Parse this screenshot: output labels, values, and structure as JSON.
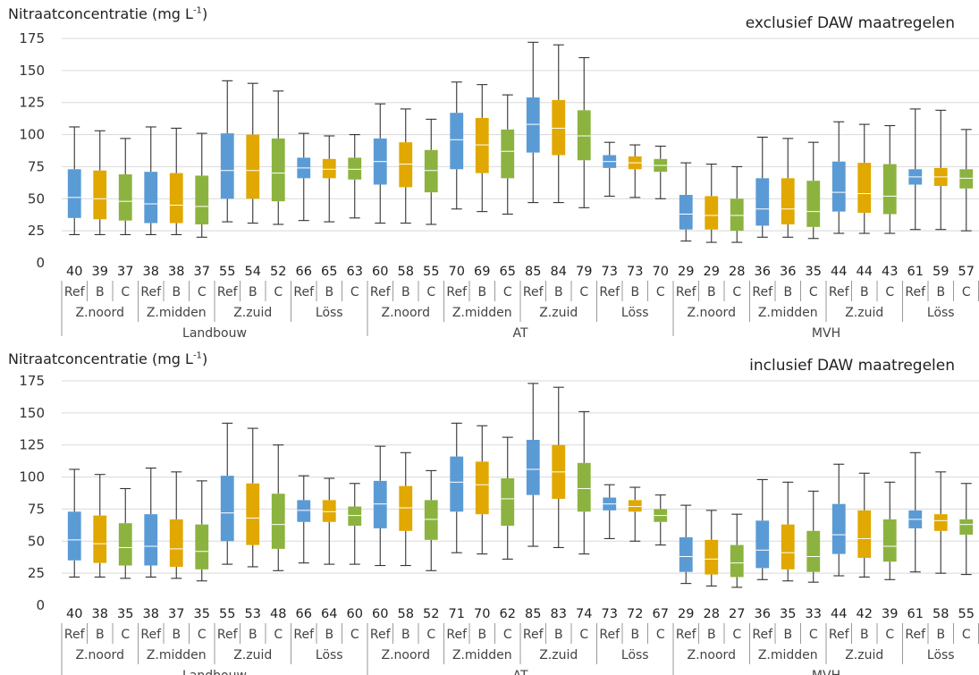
{
  "colors": {
    "Ref": "#5B9BD5",
    "B": "#E0A800",
    "C": "#8CB33F",
    "whisker": "#333333",
    "median": "#ffffff"
  },
  "chart_data": [
    {
      "type": "boxplot",
      "title": "exclusief DAW maatregelen",
      "ylabel": "Nitraatconcentratie (mg L",
      "ylabel_sup": "-1",
      "ylabel_close": ")",
      "ylim": [
        0,
        175
      ],
      "yticks": [
        0,
        25,
        50,
        75,
        100,
        125,
        150,
        175
      ],
      "grid": true,
      "scenarios": [
        "Ref",
        "B",
        "C"
      ],
      "groups": [
        {
          "name": "Landbouw",
          "regions": [
            "Z.noord",
            "Z.midden",
            "Z.zuid",
            "Löss"
          ]
        },
        {
          "name": "AT",
          "regions": [
            "Z.noord",
            "Z.midden",
            "Z.zuid",
            "Löss"
          ]
        },
        {
          "name": "MVH",
          "regions": [
            "Z.noord",
            "Z.midden",
            "Z.zuid",
            "Löss"
          ]
        }
      ],
      "boxes": [
        [
          22,
          35,
          51,
          73,
          106
        ],
        [
          22,
          34,
          50,
          72,
          103
        ],
        [
          22,
          33,
          48,
          69,
          97
        ],
        [
          22,
          31,
          46,
          71,
          106
        ],
        [
          22,
          31,
          45,
          70,
          105
        ],
        [
          20,
          30,
          44,
          68,
          101
        ],
        [
          32,
          50,
          72,
          101,
          142
        ],
        [
          31,
          50,
          72,
          100,
          140
        ],
        [
          30,
          48,
          70,
          97,
          134
        ],
        [
          33,
          66,
          74,
          82,
          101
        ],
        [
          32,
          66,
          73,
          81,
          99
        ],
        [
          35,
          65,
          73,
          82,
          100
        ],
        [
          31,
          61,
          79,
          97,
          124
        ],
        [
          31,
          59,
          77,
          94,
          120
        ],
        [
          30,
          55,
          72,
          88,
          112
        ],
        [
          42,
          73,
          96,
          117,
          141
        ],
        [
          40,
          70,
          92,
          113,
          139
        ],
        [
          38,
          66,
          87,
          104,
          131
        ],
        [
          47,
          86,
          108,
          129,
          172
        ],
        [
          47,
          84,
          105,
          127,
          170
        ],
        [
          43,
          80,
          99,
          119,
          160
        ],
        [
          52,
          74,
          79,
          84,
          94
        ],
        [
          51,
          73,
          78,
          83,
          92
        ],
        [
          50,
          71,
          76,
          81,
          91
        ],
        [
          17,
          26,
          38,
          53,
          78
        ],
        [
          16,
          26,
          37,
          52,
          77
        ],
        [
          16,
          25,
          37,
          50,
          75
        ],
        [
          20,
          29,
          42,
          66,
          98
        ],
        [
          20,
          30,
          42,
          66,
          97
        ],
        [
          19,
          28,
          40,
          64,
          94
        ],
        [
          23,
          40,
          55,
          79,
          110
        ],
        [
          23,
          39,
          54,
          78,
          108
        ],
        [
          23,
          38,
          52,
          77,
          107
        ],
        [
          26,
          61,
          67,
          73,
          120
        ],
        [
          26,
          60,
          67,
          74,
          119
        ],
        [
          25,
          58,
          66,
          73,
          104
        ]
      ],
      "labels": [
        "40",
        "39",
        "37",
        "38",
        "38",
        "37",
        "55",
        "54",
        "52",
        "66",
        "65",
        "63",
        "60",
        "58",
        "55",
        "70",
        "69",
        "65",
        "85",
        "84",
        "79",
        "73",
        "73",
        "70",
        "29",
        "29",
        "28",
        "36",
        "36",
        "35",
        "44",
        "44",
        "43",
        "61",
        "59",
        "57"
      ]
    },
    {
      "type": "boxplot",
      "title": "inclusief DAW maatregelen",
      "ylabel": "Nitraatconcentratie (mg L",
      "ylabel_sup": "-1",
      "ylabel_close": ")",
      "ylim": [
        0,
        175
      ],
      "yticks": [
        0,
        25,
        50,
        75,
        100,
        125,
        150,
        175
      ],
      "grid": true,
      "scenarios": [
        "Ref",
        "B",
        "C"
      ],
      "groups": [
        {
          "name": "Landbouw",
          "regions": [
            "Z.noord",
            "Z.midden",
            "Z.zuid",
            "Löss"
          ]
        },
        {
          "name": "AT",
          "regions": [
            "Z.noord",
            "Z.midden",
            "Z.zuid",
            "Löss"
          ]
        },
        {
          "name": "MVH",
          "regions": [
            "Z.noord",
            "Z.midden",
            "Z.zuid",
            "Löss"
          ]
        }
      ],
      "boxes": [
        [
          22,
          35,
          51,
          73,
          106
        ],
        [
          22,
          33,
          48,
          70,
          102
        ],
        [
          21,
          31,
          45,
          64,
          91
        ],
        [
          22,
          31,
          46,
          71,
          107
        ],
        [
          21,
          30,
          44,
          67,
          104
        ],
        [
          19,
          28,
          42,
          63,
          97
        ],
        [
          32,
          50,
          72,
          101,
          142
        ],
        [
          30,
          47,
          68,
          95,
          138
        ],
        [
          27,
          44,
          63,
          87,
          125
        ],
        [
          33,
          65,
          74,
          82,
          101
        ],
        [
          32,
          65,
          73,
          82,
          99
        ],
        [
          32,
          62,
          70,
          77,
          95
        ],
        [
          31,
          60,
          79,
          97,
          124
        ],
        [
          31,
          58,
          76,
          93,
          119
        ],
        [
          27,
          51,
          67,
          82,
          105
        ],
        [
          41,
          73,
          96,
          116,
          142
        ],
        [
          40,
          71,
          94,
          112,
          140
        ],
        [
          36,
          62,
          83,
          99,
          131
        ],
        [
          46,
          86,
          106,
          129,
          173
        ],
        [
          45,
          83,
          104,
          125,
          170
        ],
        [
          40,
          73,
          91,
          111,
          151
        ],
        [
          52,
          74,
          79,
          84,
          94
        ],
        [
          50,
          73,
          77,
          82,
          92
        ],
        [
          47,
          65,
          70,
          75,
          86
        ],
        [
          17,
          26,
          38,
          53,
          78
        ],
        [
          15,
          24,
          36,
          51,
          74
        ],
        [
          14,
          22,
          33,
          47,
          71
        ],
        [
          20,
          29,
          43,
          66,
          98
        ],
        [
          19,
          28,
          41,
          63,
          96
        ],
        [
          18,
          26,
          38,
          58,
          89
        ],
        [
          23,
          40,
          55,
          79,
          110
        ],
        [
          22,
          37,
          52,
          74,
          103
        ],
        [
          20,
          34,
          46,
          67,
          96
        ],
        [
          26,
          60,
          67,
          74,
          119
        ],
        [
          25,
          58,
          66,
          71,
          104
        ],
        [
          24,
          55,
          63,
          67,
          95
        ]
      ],
      "labels": [
        "40",
        "38",
        "35",
        "38",
        "37",
        "35",
        "55",
        "53",
        "48",
        "66",
        "64",
        "60",
        "60",
        "58",
        "52",
        "71",
        "70",
        "62",
        "85",
        "83",
        "74",
        "73",
        "72",
        "67",
        "29",
        "28",
        "27",
        "36",
        "35",
        "33",
        "44",
        "42",
        "39",
        "61",
        "58",
        "55"
      ]
    }
  ]
}
